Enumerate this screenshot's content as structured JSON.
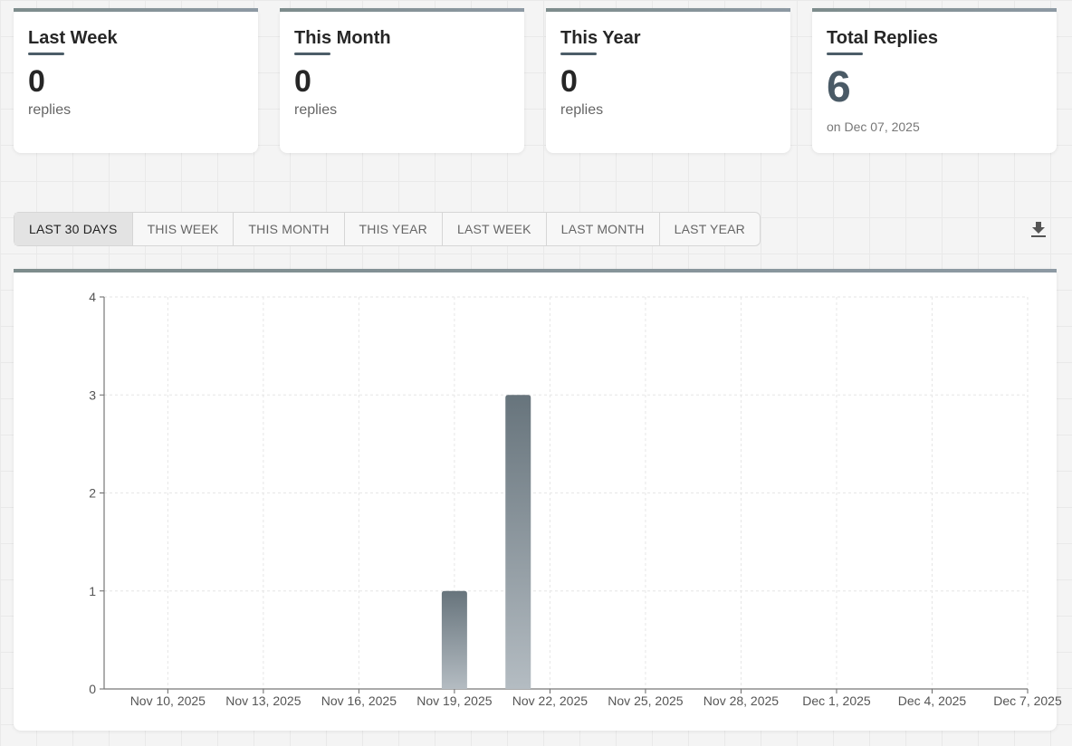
{
  "stats": [
    {
      "title": "Last Week",
      "value": "0",
      "unit": "replies"
    },
    {
      "title": "This Month",
      "value": "0",
      "unit": "replies"
    },
    {
      "title": "This Year",
      "value": "0",
      "unit": "replies"
    }
  ],
  "total": {
    "title": "Total Replies",
    "value": "6",
    "sub": "on Dec 07, 2025"
  },
  "tabs": [
    {
      "label": "LAST 30 DAYS",
      "active": true
    },
    {
      "label": "THIS WEEK",
      "active": false
    },
    {
      "label": "THIS MONTH",
      "active": false
    },
    {
      "label": "THIS YEAR",
      "active": false
    },
    {
      "label": "LAST WEEK",
      "active": false
    },
    {
      "label": "LAST MONTH",
      "active": false
    },
    {
      "label": "LAST YEAR",
      "active": false
    }
  ],
  "download_icon": "download-icon",
  "colors": {
    "accent": "#4a5a66",
    "bar_top": "#67747c",
    "bar_bottom": "#b4bcc2"
  },
  "chart_data": {
    "type": "bar",
    "x": [
      "Nov 19, 2025",
      "Nov 21, 2025"
    ],
    "values": [
      1,
      3
    ],
    "xticks": [
      "Nov 10, 2025",
      "Nov 13, 2025",
      "Nov 16, 2025",
      "Nov 19, 2025",
      "Nov 22, 2025",
      "Nov 25, 2025",
      "Nov 28, 2025",
      "Dec 1, 2025",
      "Dec 4, 2025",
      "Dec 7, 2025"
    ],
    "yticks": [
      0,
      1,
      2,
      3,
      4
    ],
    "xlim": [
      "Nov 8, 2025",
      "Dec 7, 2025"
    ],
    "ylim": [
      0,
      4
    ],
    "grid": true,
    "title": "",
    "xlabel": "",
    "ylabel": ""
  }
}
